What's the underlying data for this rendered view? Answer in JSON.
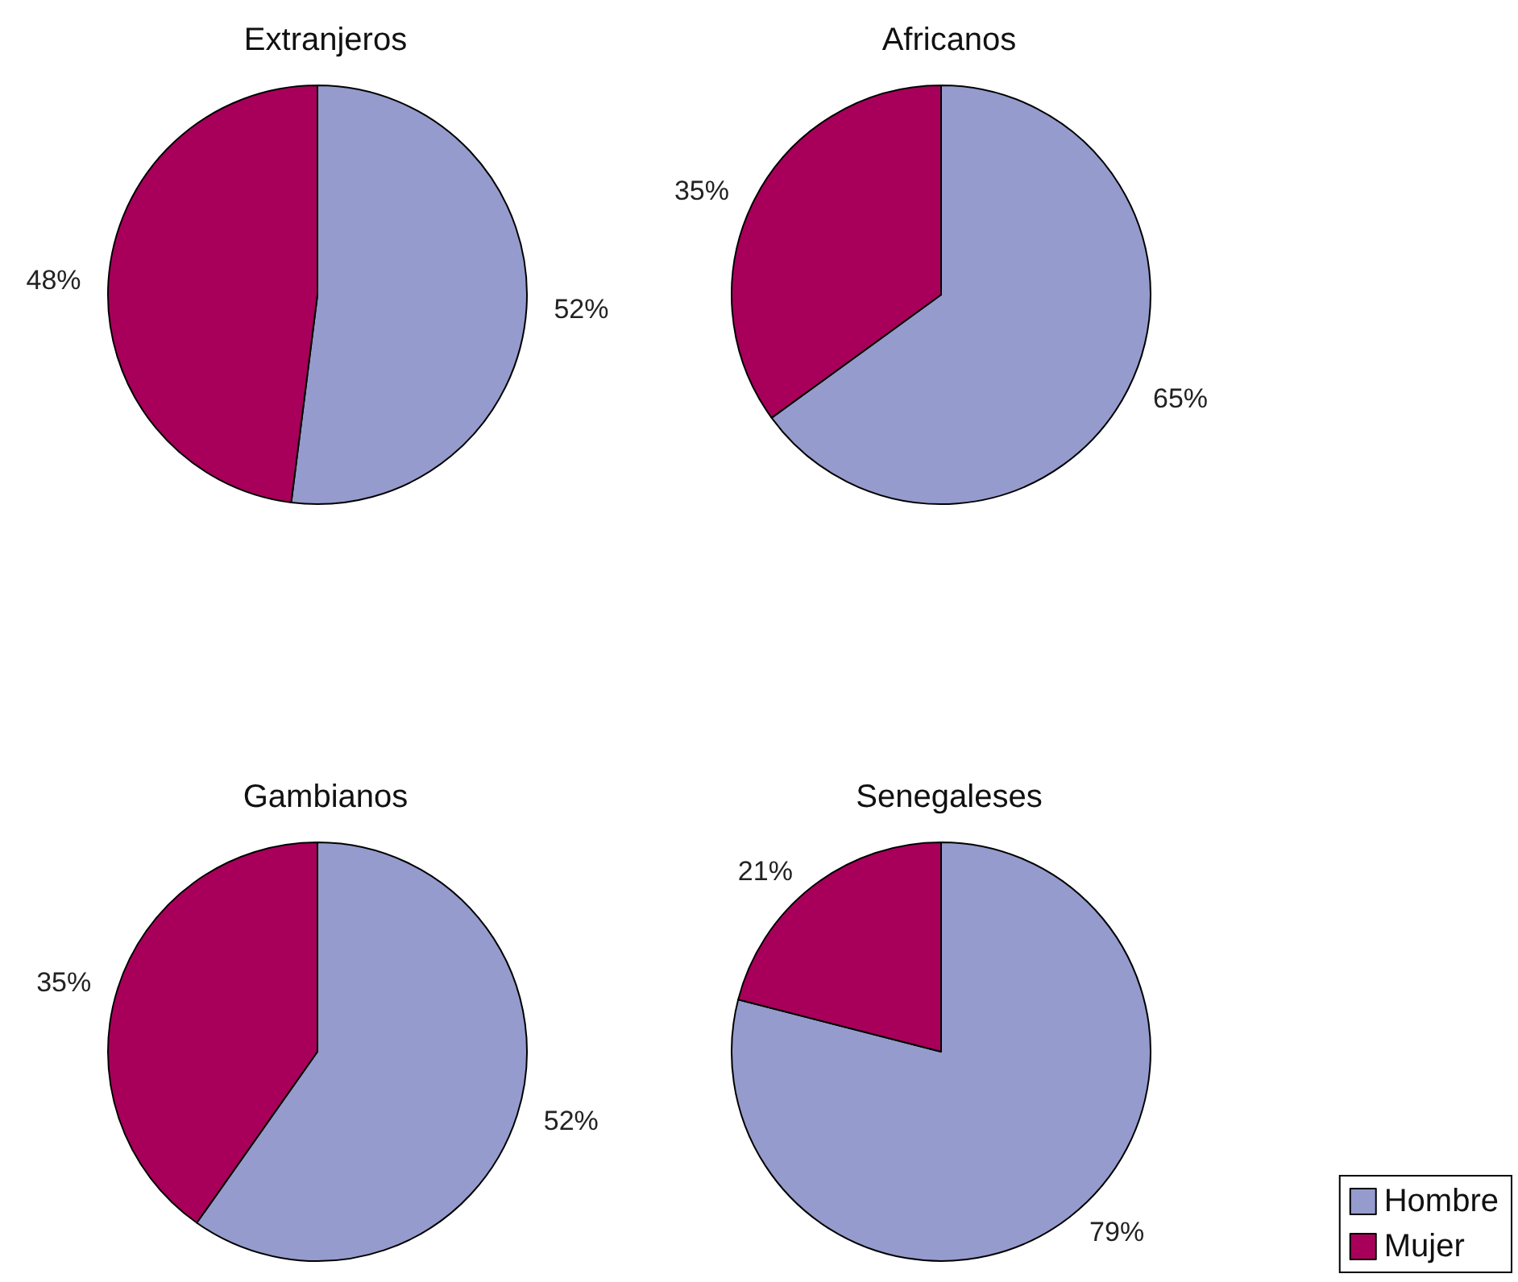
{
  "chart_data": [
    {
      "type": "pie",
      "title": "Extranjeros",
      "categories": [
        null,
        null
      ],
      "values": [
        52,
        48
      ],
      "value_labels": [
        "52%",
        "48%"
      ],
      "colors": [
        "#959bcc",
        "#a8005a"
      ],
      "legend": false
    },
    {
      "type": "pie",
      "title": "Africanos",
      "categories": [
        null,
        null
      ],
      "values": [
        65,
        35
      ],
      "value_labels": [
        "65%",
        "35%"
      ],
      "colors": [
        "#959bcc",
        "#a8005a"
      ],
      "legend": false
    },
    {
      "type": "pie",
      "title": "Gambianos",
      "categories": [
        null,
        null
      ],
      "values": [
        52,
        35
      ],
      "value_labels": [
        "52%",
        "35%"
      ],
      "colors": [
        "#959bcc",
        "#a8005a"
      ],
      "legend": false
    },
    {
      "type": "pie",
      "title": "Senegaleses",
      "categories": [
        "Hombre",
        "Mujer"
      ],
      "values": [
        79,
        21
      ],
      "value_labels": [
        "79%",
        "21%"
      ],
      "colors": [
        "#959bcc",
        "#a8005a"
      ],
      "legend": "bottom right"
    }
  ]
}
